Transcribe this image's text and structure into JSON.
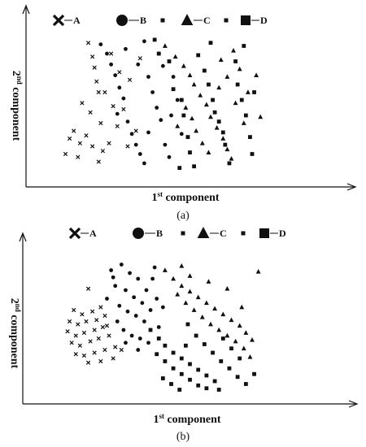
{
  "chart_data": [
    {
      "type": "scatter",
      "panel_label": "(a)",
      "xlabel": {
        "base": "1",
        "sup": "st",
        "text": " component"
      },
      "ylabel": {
        "base": "2",
        "sup": "nd",
        "text": " component"
      },
      "xlim": [
        0,
        100
      ],
      "ylim": [
        0,
        100
      ],
      "ticks": "none",
      "legend": {
        "placement": "top",
        "entries": [
          "A",
          "B",
          "C",
          "D"
        ]
      },
      "series": [
        {
          "name": "A",
          "marker": "x",
          "points": [
            [
              21,
              87
            ],
            [
              23,
              78
            ],
            [
              24,
              71
            ],
            [
              25,
              62
            ],
            [
              26,
              55
            ],
            [
              18,
              48
            ],
            [
              22,
              42
            ],
            [
              27,
              35
            ],
            [
              14,
              30
            ],
            [
              20,
              27
            ],
            [
              12,
              25
            ],
            [
              17,
              22
            ],
            [
              23,
              20
            ],
            [
              28,
              17
            ],
            [
              10,
              15
            ],
            [
              16,
              13
            ],
            [
              26,
              10
            ],
            [
              31,
              22
            ],
            [
              33,
              46
            ],
            [
              35,
              33
            ],
            [
              29,
              55
            ],
            [
              38,
              44
            ],
            [
              41,
              63
            ],
            [
              36,
              68
            ],
            [
              44,
              30
            ],
            [
              40,
              20
            ],
            [
              46,
              77
            ],
            [
              32,
              80
            ]
          ]
        },
        {
          "name": "B",
          "marker": "circle",
          "points": [
            [
              27,
              86
            ],
            [
              30,
              80
            ],
            [
              32,
              73
            ],
            [
              34,
              66
            ],
            [
              36,
              58
            ],
            [
              38,
              51
            ],
            [
              35,
              41
            ],
            [
              40,
              36
            ],
            [
              42,
              28
            ],
            [
              44,
              21
            ],
            [
              46,
              15
            ],
            [
              48,
              9
            ],
            [
              50,
              65
            ],
            [
              52,
              55
            ],
            [
              54,
              45
            ],
            [
              56,
              37
            ],
            [
              50,
              29
            ],
            [
              58,
              21
            ],
            [
              60,
              13
            ],
            [
              45,
              73
            ],
            [
              39,
              83
            ],
            [
              55,
              80
            ],
            [
              62,
              65
            ],
            [
              64,
              50
            ],
            [
              66,
              28
            ],
            [
              61,
              40
            ],
            [
              48,
              88
            ],
            [
              57,
              72
            ]
          ]
        },
        {
          "name": "C",
          "marker": "triangle",
          "points": [
            [
              58,
              85
            ],
            [
              63,
              78
            ],
            [
              67,
              72
            ],
            [
              70,
              66
            ],
            [
              72,
              60
            ],
            [
              75,
              53
            ],
            [
              78,
              47
            ],
            [
              80,
              39
            ],
            [
              83,
              32
            ],
            [
              86,
              25
            ],
            [
              88,
              18
            ],
            [
              90,
              12
            ],
            [
              68,
              45
            ],
            [
              71,
              38
            ],
            [
              73,
              30
            ],
            [
              76,
              22
            ],
            [
              79,
              16
            ],
            [
              84,
              58
            ],
            [
              88,
              65
            ],
            [
              92,
              48
            ],
            [
              94,
              70
            ],
            [
              96,
              35
            ],
            [
              98,
              55
            ],
            [
              102,
              66
            ],
            [
              104,
              39
            ],
            [
              85,
              76
            ],
            [
              64,
              33
            ],
            [
              91,
              82
            ]
          ]
        },
        {
          "name": "D",
          "marker": "square",
          "points": [
            [
              53,
              89
            ],
            [
              55,
              80
            ],
            [
              60,
              75
            ],
            [
              62,
              57
            ],
            [
              66,
              50
            ],
            [
              67,
              40
            ],
            [
              69,
              26
            ],
            [
              70,
              16
            ],
            [
              72,
              7
            ],
            [
              74,
              79
            ],
            [
              77,
              69
            ],
            [
              79,
              60
            ],
            [
              81,
              50
            ],
            [
              82,
              42
            ],
            [
              84,
              36
            ],
            [
              86,
              29
            ],
            [
              87,
              21
            ],
            [
              89,
              9
            ],
            [
              92,
              75
            ],
            [
              93,
              60
            ],
            [
              95,
              50
            ],
            [
              97,
              40
            ],
            [
              99,
              26
            ],
            [
              100,
              15
            ],
            [
              101,
              55
            ],
            [
              96,
              85
            ],
            [
              80,
              87
            ],
            [
              65,
              6
            ]
          ]
        }
      ]
    },
    {
      "type": "scatter",
      "panel_label": "(b)",
      "xlabel": {
        "base": "1",
        "sup": "st",
        "text": " component"
      },
      "ylabel": {
        "base": "2",
        "sup": "nd",
        "text": " component"
      },
      "xlim": [
        0,
        100
      ],
      "ylim": [
        0,
        100
      ],
      "ticks": "none",
      "legend": {
        "placement": "top",
        "entries": [
          "A",
          "B",
          "C",
          "D"
        ]
      },
      "series": [
        {
          "name": "A",
          "marker": "x",
          "points": [
            [
              21,
              73
            ],
            [
              14,
              58
            ],
            [
              18,
              55
            ],
            [
              23,
              57
            ],
            [
              27,
              60
            ],
            [
              12,
              50
            ],
            [
              16,
              48
            ],
            [
              20,
              50
            ],
            [
              25,
              51
            ],
            [
              29,
              54
            ],
            [
              11,
              43
            ],
            [
              15,
              40
            ],
            [
              19,
              42
            ],
            [
              24,
              44
            ],
            [
              28,
              46
            ],
            [
              13,
              35
            ],
            [
              17,
              33
            ],
            [
              22,
              36
            ],
            [
              26,
              38
            ],
            [
              31,
              40
            ],
            [
              15,
              27
            ],
            [
              19,
              26
            ],
            [
              24,
              28
            ],
            [
              29,
              30
            ],
            [
              34,
              32
            ],
            [
              21,
              21
            ],
            [
              27,
              22
            ],
            [
              33,
              24
            ],
            [
              37,
              30
            ],
            [
              30,
              47
            ]
          ]
        },
        {
          "name": "B",
          "marker": "circle",
          "points": [
            [
              32,
              86
            ],
            [
              37,
              90
            ],
            [
              41,
              84
            ],
            [
              45,
              80
            ],
            [
              34,
              75
            ],
            [
              39,
              72
            ],
            [
              43,
              67
            ],
            [
              47,
              63
            ],
            [
              36,
              61
            ],
            [
              40,
              57
            ],
            [
              44,
              54
            ],
            [
              48,
              50
            ],
            [
              35,
              50
            ],
            [
              38,
              44
            ],
            [
              42,
              40
            ],
            [
              46,
              38
            ],
            [
              50,
              35
            ],
            [
              30,
              66
            ],
            [
              49,
              72
            ],
            [
              52,
              80
            ],
            [
              54,
              66
            ],
            [
              51,
              58
            ],
            [
              55,
              46
            ],
            [
              39,
              35
            ],
            [
              45,
              30
            ],
            [
              53,
              88
            ],
            [
              33,
              81
            ],
            [
              57,
              60
            ]
          ]
        },
        {
          "name": "C",
          "marker": "triangle",
          "points": [
            [
              58,
              86
            ],
            [
              62,
              80
            ],
            [
              66,
              75
            ],
            [
              70,
              71
            ],
            [
              74,
              67
            ],
            [
              78,
              63
            ],
            [
              82,
              59
            ],
            [
              86,
              55
            ],
            [
              90,
              51
            ],
            [
              94,
              47
            ],
            [
              97,
              42
            ],
            [
              100,
              37
            ],
            [
              64,
              69
            ],
            [
              68,
              63
            ],
            [
              72,
              58
            ],
            [
              76,
              53
            ],
            [
              80,
              48
            ],
            [
              84,
              44
            ],
            [
              88,
              40
            ],
            [
              92,
              36
            ],
            [
              96,
              31
            ],
            [
              99,
              25
            ],
            [
              70,
              82
            ],
            [
              79,
              78
            ],
            [
              88,
              73
            ],
            [
              95,
              60
            ],
            [
              103,
              85
            ],
            [
              66,
              89
            ]
          ]
        },
        {
          "name": "D",
          "marker": "square",
          "points": [
            [
              51,
              44
            ],
            [
              55,
              38
            ],
            [
              58,
              33
            ],
            [
              62,
              28
            ],
            [
              66,
              24
            ],
            [
              70,
              20
            ],
            [
              74,
              16
            ],
            [
              78,
              12
            ],
            [
              82,
              8
            ],
            [
              54,
              27
            ],
            [
              58,
              22
            ],
            [
              62,
              17
            ],
            [
              66,
              13
            ],
            [
              70,
              9
            ],
            [
              74,
              5
            ],
            [
              57,
              10
            ],
            [
              61,
              6
            ],
            [
              65,
              2
            ],
            [
              69,
              48
            ],
            [
              73,
              40
            ],
            [
              77,
              34
            ],
            [
              81,
              28
            ],
            [
              85,
              22
            ],
            [
              89,
              17
            ],
            [
              93,
              11
            ],
            [
              97,
              6
            ],
            [
              101,
              13
            ],
            [
              90,
              31
            ],
            [
              86,
              38
            ],
            [
              94,
              24
            ],
            [
              68,
              33
            ],
            [
              78,
              3
            ],
            [
              84,
              2
            ]
          ]
        }
      ]
    }
  ]
}
